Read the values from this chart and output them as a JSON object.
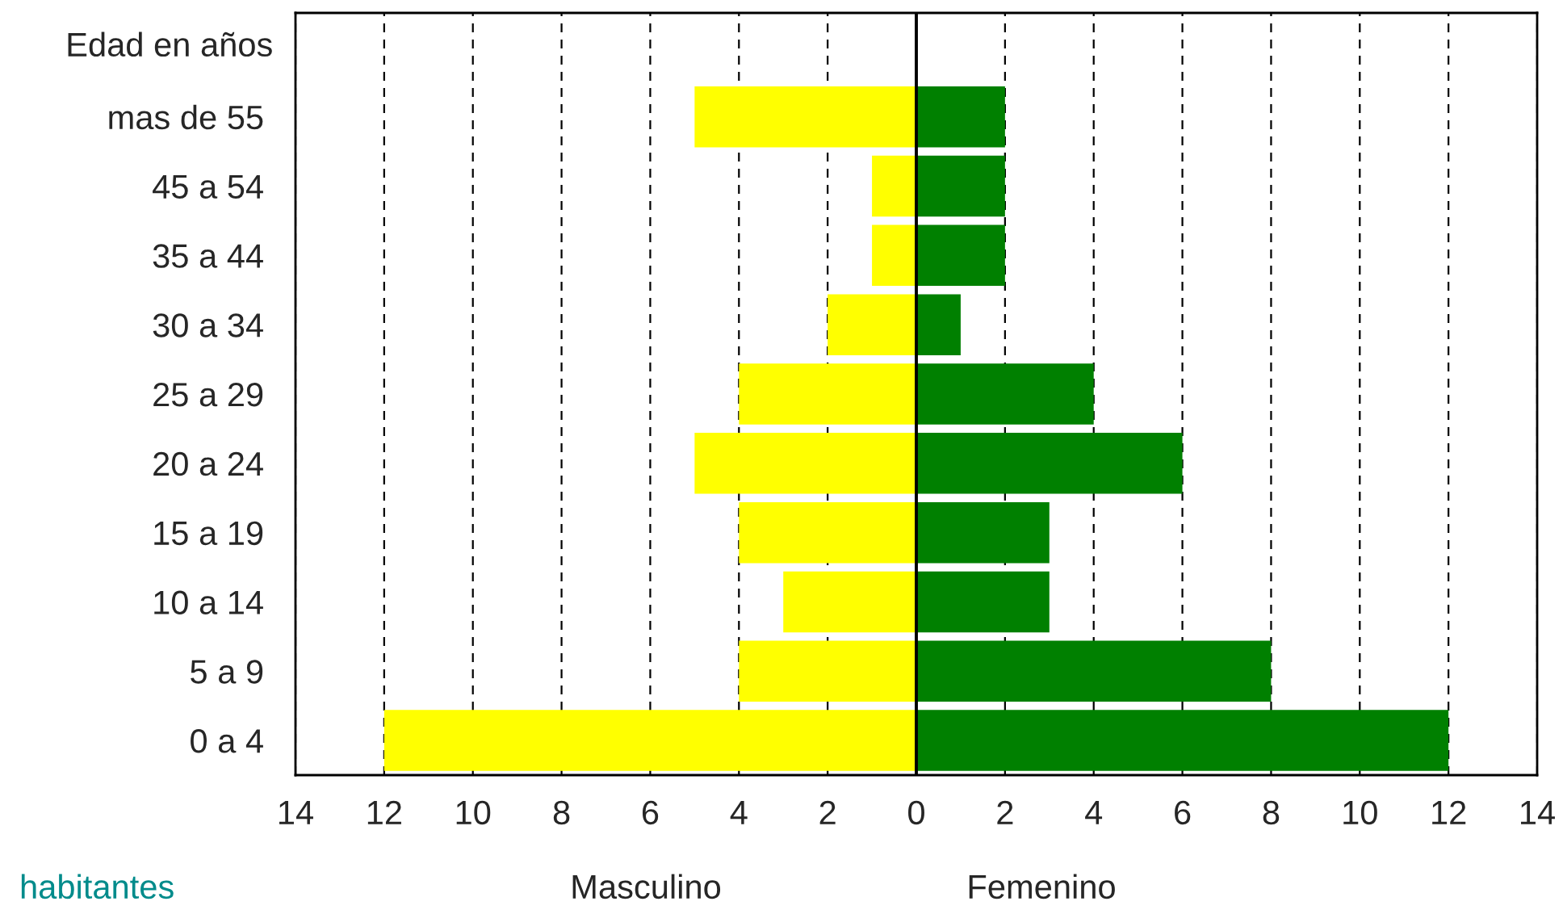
{
  "chart_data": {
    "type": "bar",
    "orientation": "horizontal",
    "stacked": true,
    "annotations": [
      "Masculino",
      "Femenino"
    ],
    "ylabel": "Edad en años",
    "xlabel": "habitantes",
    "categories": [
      "mas de 55",
      "45 a 54",
      "35 a 44",
      "30 a 34",
      "25 a 29",
      "20 a 24",
      "15 a 19",
      "10 a 14",
      "5 a 9",
      "0 a 4"
    ],
    "series": [
      {
        "color": "#ffff00",
        "values": [
          -5,
          -1,
          -1,
          -2,
          -4,
          -5,
          -4,
          -3,
          -4,
          -12
        ]
      },
      {
        "color": "#008000",
        "values": [
          2,
          2,
          2,
          1,
          4,
          6,
          3,
          3,
          8,
          12
        ]
      }
    ],
    "xlim": [
      -14,
      14
    ],
    "xticks": [
      {
        "value": -14,
        "label": "14"
      },
      {
        "value": -12,
        "label": "12"
      },
      {
        "value": -10,
        "label": "10"
      },
      {
        "value": -8,
        "label": "8"
      },
      {
        "value": -6,
        "label": "6"
      },
      {
        "value": -4,
        "label": "4"
      },
      {
        "value": -2,
        "label": "2"
      },
      0,
      2,
      4,
      6,
      8,
      10,
      12,
      14
    ],
    "ref_lines": [
      {
        "axis": "x",
        "value": 0,
        "color": "#000000",
        "line_style": "solid"
      }
    ],
    "grid": "x",
    "legend": false
  }
}
